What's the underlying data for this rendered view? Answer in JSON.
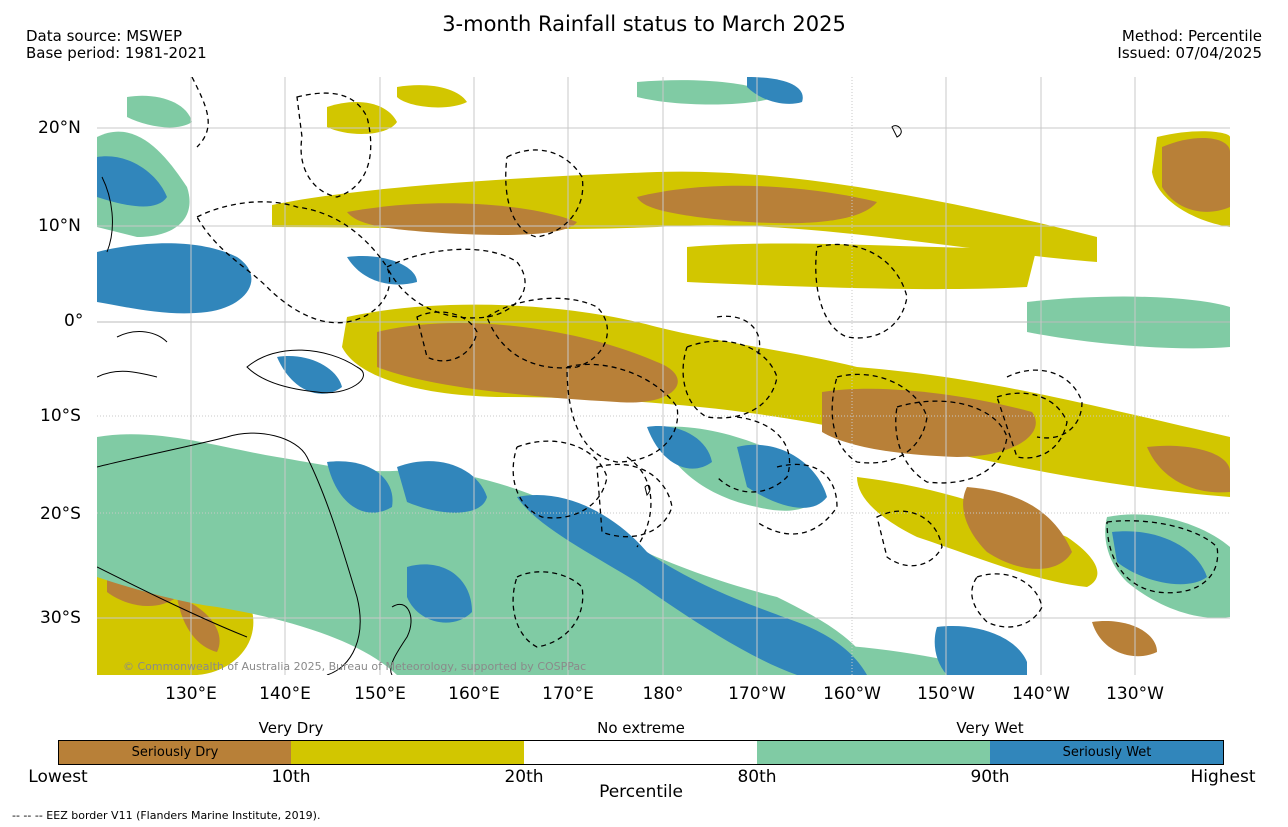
{
  "title": "3-month Rainfall status to March 2025",
  "header_left": {
    "line1": "Data source: MSWEP",
    "line2": "Base period: 1981-2021"
  },
  "header_right": {
    "line1": "Method: Percentile",
    "line2": "Issued: 07/04/2025"
  },
  "lat_labels": [
    "20°N",
    "10°N",
    "0°",
    "10°S",
    "20°S",
    "30°S"
  ],
  "lon_labels": [
    "130°E",
    "140°E",
    "150°E",
    "160°E",
    "170°E",
    "180°",
    "170°W",
    "160°W",
    "150°W",
    "140°W",
    "130°W"
  ],
  "copyright": "© Commonwealth of Australia 2025, Bureau of Meteorology, supported by COSPPac",
  "colors": {
    "seriously_dry": "#b88038",
    "very_dry": "#d2c600",
    "no_extreme": "#ffffff",
    "very_wet": "#80cba4",
    "seriously_wet": "#3186bb"
  },
  "colorbar": {
    "group_labels": {
      "very_dry": "Very Dry",
      "no_extreme": "No extreme",
      "very_wet": "Very Wet"
    },
    "inner_labels": {
      "seriously_dry": "Seriously Dry",
      "seriously_wet": "Seriously Wet"
    },
    "ticks": [
      "Lowest",
      "10th",
      "20th",
      "80th",
      "90th",
      "Highest"
    ],
    "axis_label": "Percentile"
  },
  "footnote": "--  --  -- EEZ border V11 (Flanders Marine Institute, 2019)."
}
